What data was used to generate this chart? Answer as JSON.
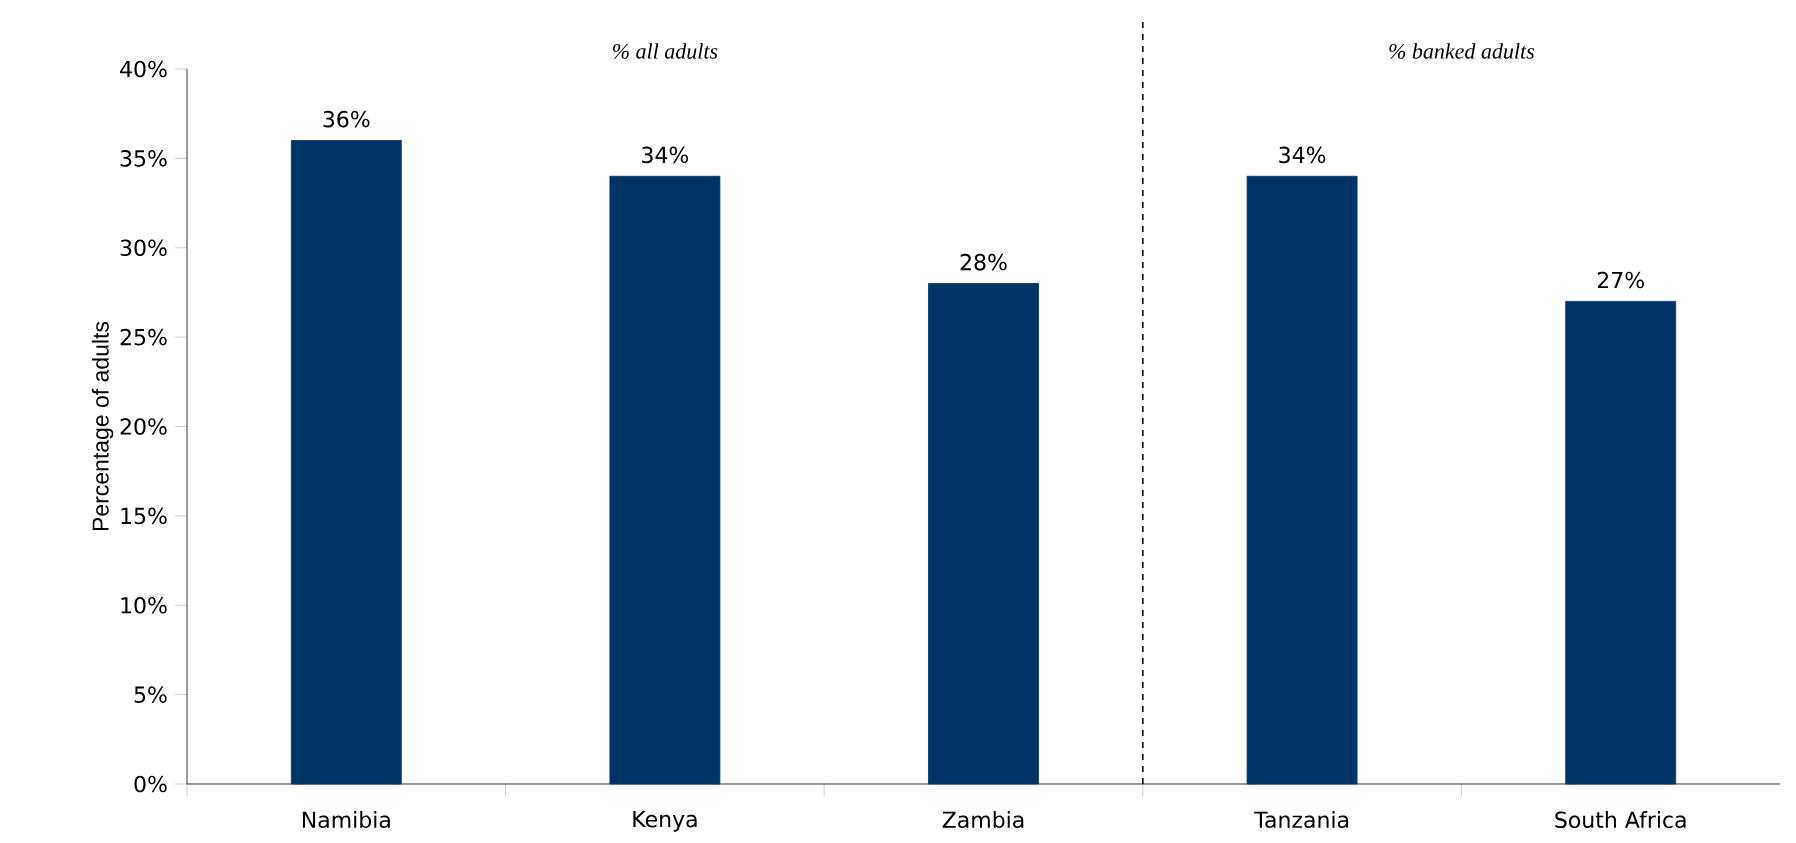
{
  "chart_data": {
    "type": "bar",
    "ylabel": "Percentage of adults",
    "categories": [
      "Namibia",
      "Kenya",
      "Zambia",
      "Tanzania",
      "South Africa"
    ],
    "values": [
      36,
      34,
      28,
      34,
      27
    ],
    "value_labels": [
      "36%",
      "34%",
      "28%",
      "34%",
      "27%"
    ],
    "color": "#003366",
    "ylim": [
      0,
      40
    ],
    "yticks": [
      {
        "value": 0,
        "label": "0%"
      },
      {
        "value": 5,
        "label": "5%"
      },
      {
        "value": 10,
        "label": "10%"
      },
      {
        "value": 15,
        "label": "15%"
      },
      {
        "value": 20,
        "label": "20%"
      },
      {
        "value": 25,
        "label": "25%"
      },
      {
        "value": 30,
        "label": "30%"
      },
      {
        "value": 35,
        "label": "35%"
      },
      {
        "value": 40,
        "label": "40%"
      }
    ],
    "annotations": [
      "% all adults",
      "% banked adults"
    ]
  }
}
